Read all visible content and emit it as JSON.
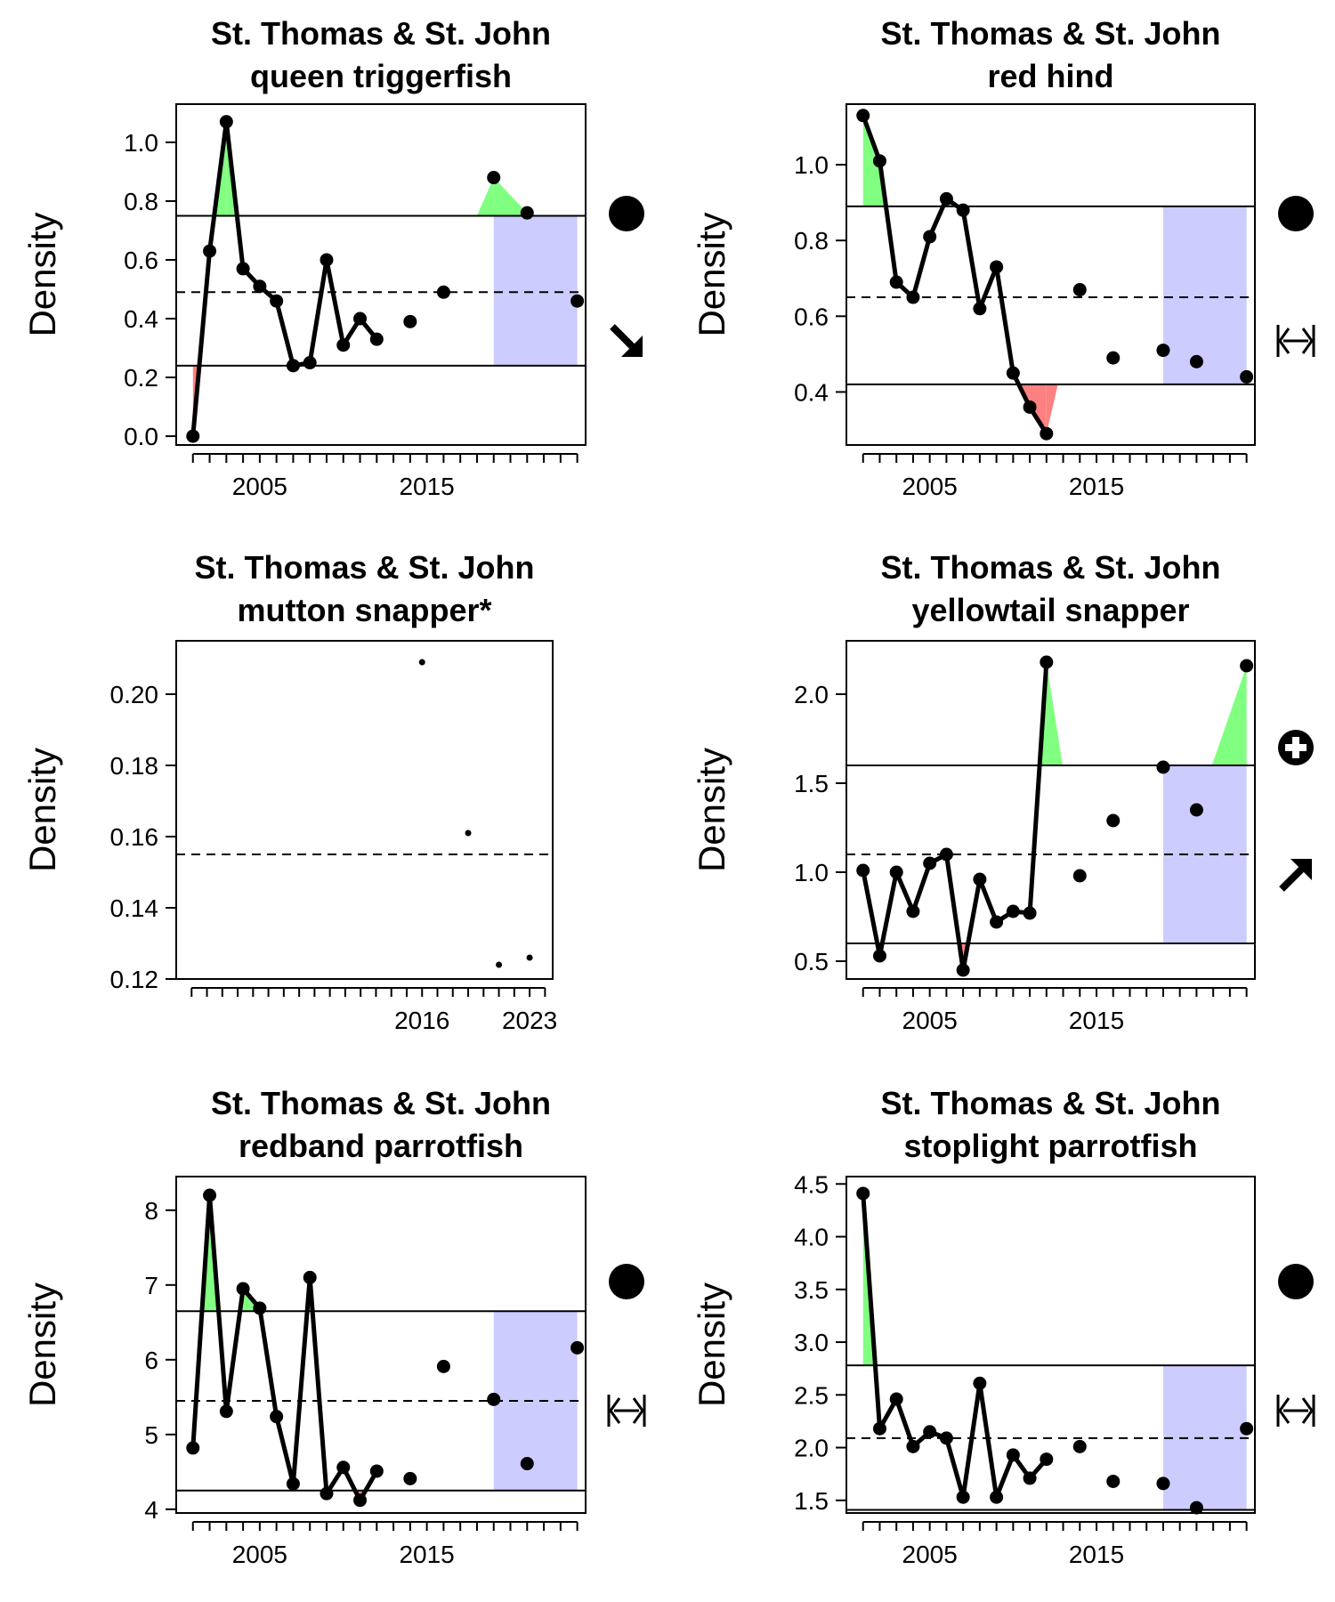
{
  "chart_data": [
    {
      "type": "line",
      "title": [
        "St. Thomas & St. John",
        "queen triggerfish"
      ],
      "ylabel": "Density",
      "xlim": [
        2000,
        2024.5
      ],
      "ylim": [
        -0.03,
        1.13
      ],
      "yticks": [
        0.0,
        0.2,
        0.4,
        0.6,
        0.8,
        1.0
      ],
      "yticklabels": [
        "0.0",
        "0.2",
        "0.4",
        "0.6",
        "0.8",
        "1.0"
      ],
      "xticks": [
        2001,
        2002,
        2003,
        2004,
        2005,
        2006,
        2007,
        2008,
        2009,
        2010,
        2011,
        2012,
        2013,
        2014,
        2015,
        2016,
        2017,
        2018,
        2019,
        2020,
        2021,
        2022,
        2023,
        2024
      ],
      "xticklabels": {
        "2005": "2005",
        "2015": "2015"
      },
      "series": [
        {
          "x": [
            2001,
            2002,
            2003,
            2004,
            2005,
            2006,
            2007,
            2008,
            2009,
            2010,
            2011,
            2012,
            2014,
            2016,
            2019,
            2021,
            2024
          ],
          "y": [
            0.0,
            0.63,
            1.07,
            0.57,
            0.51,
            0.46,
            0.24,
            0.25,
            0.6,
            0.31,
            0.4,
            0.33,
            0.39,
            0.49,
            0.88,
            0.76,
            0.46
          ]
        }
      ],
      "line_end_year": 2012,
      "mean": 0.49,
      "upper": 0.75,
      "lower": 0.24,
      "recent_window": [
        2019,
        2024
      ],
      "status_icon": "filled-circle-icon",
      "trend_icon": "arrow-down-right-icon"
    },
    {
      "type": "line",
      "title": [
        "St. Thomas & St. John",
        "red hind"
      ],
      "ylabel": "Density",
      "xlim": [
        2000,
        2024.5
      ],
      "ylim": [
        0.26,
        1.16
      ],
      "yticks": [
        0.4,
        0.6,
        0.8,
        1.0
      ],
      "yticklabels": [
        "0.4",
        "0.6",
        "0.8",
        "1.0"
      ],
      "xticks": [
        2001,
        2002,
        2003,
        2004,
        2005,
        2006,
        2007,
        2008,
        2009,
        2010,
        2011,
        2012,
        2013,
        2014,
        2015,
        2016,
        2017,
        2018,
        2019,
        2020,
        2021,
        2022,
        2023,
        2024
      ],
      "xticklabels": {
        "2005": "2005",
        "2015": "2015"
      },
      "series": [
        {
          "x": [
            2001,
            2002,
            2003,
            2004,
            2005,
            2006,
            2007,
            2008,
            2009,
            2010,
            2011,
            2012,
            2014,
            2016,
            2019,
            2021,
            2024
          ],
          "y": [
            1.13,
            1.01,
            0.69,
            0.65,
            0.81,
            0.91,
            0.88,
            0.62,
            0.73,
            0.45,
            0.36,
            0.29,
            0.67,
            0.49,
            0.51,
            0.48,
            0.44
          ]
        }
      ],
      "line_end_year": 2012,
      "mean": 0.65,
      "upper": 0.89,
      "lower": 0.42,
      "recent_window": [
        2019,
        2024
      ],
      "status_icon": "filled-circle-icon",
      "trend_icon": "horizontal-double-arrow-icon"
    },
    {
      "type": "scatter",
      "title": [
        "St. Thomas & St. John",
        "mutton snapper*"
      ],
      "ylabel": "Density",
      "xlim": [
        2000,
        2024.5
      ],
      "ylim": [
        0.12,
        0.215
      ],
      "yticks": [
        0.12,
        0.14,
        0.16,
        0.18,
        0.2
      ],
      "yticklabels": [
        "0.12",
        "0.14",
        "0.16",
        "0.18",
        "0.20"
      ],
      "xticks": [
        2001,
        2002,
        2003,
        2004,
        2005,
        2006,
        2007,
        2008,
        2009,
        2010,
        2011,
        2012,
        2013,
        2014,
        2015,
        2016,
        2017,
        2018,
        2019,
        2020,
        2021,
        2022,
        2023,
        2024
      ],
      "xticklabels": {
        "2016": "2016",
        "2023": "2023"
      },
      "series": [
        {
          "x": [
            2016,
            2019,
            2021,
            2023
          ],
          "y": [
            0.209,
            0.161,
            0.124,
            0.126
          ]
        }
      ],
      "mean": 0.155
    },
    {
      "type": "line",
      "title": [
        "St. Thomas & St. John",
        "yellowtail snapper"
      ],
      "ylabel": "Density",
      "xlim": [
        2000,
        2024.5
      ],
      "ylim": [
        0.4,
        2.3
      ],
      "yticks": [
        0.5,
        1.0,
        1.5,
        2.0
      ],
      "yticklabels": [
        "0.5",
        "1.0",
        "1.5",
        "2.0"
      ],
      "xticks": [
        2001,
        2002,
        2003,
        2004,
        2005,
        2006,
        2007,
        2008,
        2009,
        2010,
        2011,
        2012,
        2013,
        2014,
        2015,
        2016,
        2017,
        2018,
        2019,
        2020,
        2021,
        2022,
        2023,
        2024
      ],
      "xticklabels": {
        "2005": "2005",
        "2015": "2015"
      },
      "series": [
        {
          "x": [
            2001,
            2002,
            2003,
            2004,
            2005,
            2006,
            2007,
            2008,
            2009,
            2010,
            2011,
            2012,
            2014,
            2016,
            2019,
            2021,
            2024
          ],
          "y": [
            1.01,
            0.53,
            1.0,
            0.78,
            1.05,
            1.1,
            0.45,
            0.96,
            0.72,
            0.78,
            0.77,
            2.18,
            0.98,
            1.29,
            1.59,
            1.35,
            2.16
          ]
        }
      ],
      "line_end_year": 2012,
      "mean": 1.1,
      "upper": 1.6,
      "lower": 0.6,
      "recent_window": [
        2019,
        2024
      ],
      "status_icon": "circle-plus-icon",
      "trend_icon": "arrow-up-right-icon"
    },
    {
      "type": "line",
      "title": [
        "St. Thomas & St. John",
        "redband parrotfish"
      ],
      "ylabel": "Density",
      "xlim": [
        2000,
        2024.5
      ],
      "ylim": [
        3.95,
        8.45
      ],
      "yticks": [
        4,
        5,
        6,
        7,
        8
      ],
      "yticklabels": [
        "4",
        "5",
        "6",
        "7",
        "8"
      ],
      "xticks": [
        2001,
        2002,
        2003,
        2004,
        2005,
        2006,
        2007,
        2008,
        2009,
        2010,
        2011,
        2012,
        2013,
        2014,
        2015,
        2016,
        2017,
        2018,
        2019,
        2020,
        2021,
        2022,
        2023,
        2024
      ],
      "xticklabels": {
        "2005": "2005",
        "2015": "2015"
      },
      "series": [
        {
          "x": [
            2001,
            2002,
            2003,
            2004,
            2005,
            2006,
            2007,
            2008,
            2009,
            2010,
            2011,
            2012,
            2014,
            2016,
            2019,
            2021,
            2024
          ],
          "y": [
            4.82,
            8.2,
            5.31,
            6.95,
            6.69,
            5.24,
            4.34,
            7.1,
            4.21,
            4.56,
            4.12,
            4.51,
            4.41,
            5.91,
            5.47,
            4.61,
            6.16
          ]
        }
      ],
      "line_end_year": 2012,
      "mean": 5.45,
      "upper": 6.65,
      "lower": 4.25,
      "recent_window": [
        2019,
        2024
      ],
      "status_icon": "filled-circle-icon",
      "trend_icon": "horizontal-double-arrow-icon"
    },
    {
      "type": "line",
      "title": [
        "St. Thomas & St. John",
        "stoplight parrotfish"
      ],
      "ylabel": "Density",
      "xlim": [
        2000,
        2024.5
      ],
      "ylim": [
        1.38,
        4.57
      ],
      "yticks": [
        1.5,
        2.0,
        2.5,
        3.0,
        3.5,
        4.0,
        4.5
      ],
      "yticklabels": [
        "1.5",
        "2.0",
        "2.5",
        "3.0",
        "3.5",
        "4.0",
        "4.5"
      ],
      "xticks": [
        2001,
        2002,
        2003,
        2004,
        2005,
        2006,
        2007,
        2008,
        2009,
        2010,
        2011,
        2012,
        2013,
        2014,
        2015,
        2016,
        2017,
        2018,
        2019,
        2020,
        2021,
        2022,
        2023,
        2024
      ],
      "xticklabels": {
        "2005": "2005",
        "2015": "2015"
      },
      "series": [
        {
          "x": [
            2001,
            2002,
            2003,
            2004,
            2005,
            2006,
            2007,
            2008,
            2009,
            2010,
            2011,
            2012,
            2014,
            2016,
            2019,
            2021,
            2024
          ],
          "y": [
            4.41,
            2.18,
            2.46,
            2.01,
            2.15,
            2.09,
            1.53,
            2.61,
            1.53,
            1.93,
            1.71,
            1.89,
            2.01,
            1.68,
            1.66,
            1.43,
            2.18
          ]
        }
      ],
      "line_end_year": 2012,
      "mean": 2.09,
      "upper": 2.78,
      "lower": 1.41,
      "recent_window": [
        2019,
        2024
      ],
      "status_icon": "filled-circle-icon",
      "trend_icon": "horizontal-double-arrow-icon"
    }
  ],
  "colors": {
    "above_fill": "#80ff80",
    "below_fill": "#ff8080",
    "recent_fill": "#ccccff",
    "line": "#000000"
  }
}
